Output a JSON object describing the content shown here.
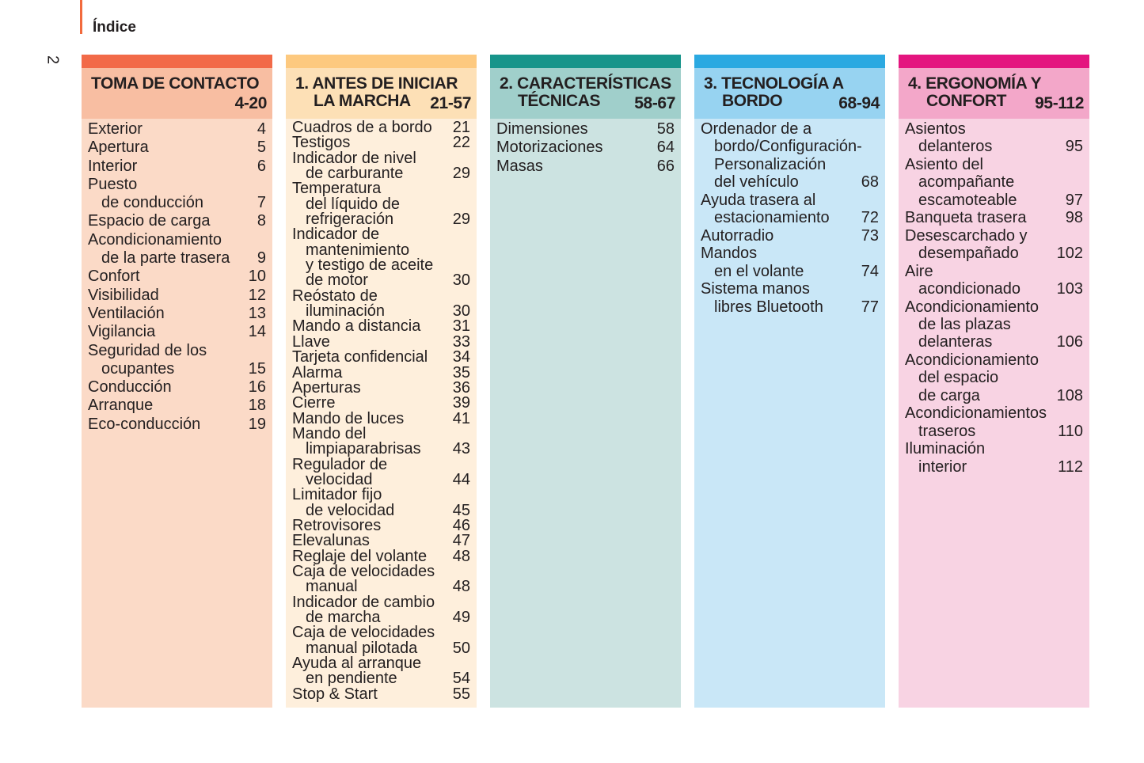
{
  "header": {
    "title": "Índice",
    "page_number": "2"
  },
  "columns": [
    {
      "header": {
        "lines": [
          "TOMA DE CONTACTO"
        ],
        "range": "4-20"
      },
      "entries": [
        {
          "lines": [
            "Exterior"
          ],
          "page": "4"
        },
        {
          "lines": [
            "Apertura"
          ],
          "page": "5"
        },
        {
          "lines": [
            "Interior"
          ],
          "page": "6"
        },
        {
          "lines": [
            "Puesto",
            "de conducción"
          ],
          "page": "7"
        },
        {
          "lines": [
            "Espacio de carga"
          ],
          "page": "8"
        },
        {
          "lines": [
            "Acondicionamiento",
            "de la parte trasera"
          ],
          "page": "9"
        },
        {
          "lines": [
            "Confort"
          ],
          "page": "10"
        },
        {
          "lines": [
            "Visibilidad"
          ],
          "page": "12"
        },
        {
          "lines": [
            "Ventilación"
          ],
          "page": "13"
        },
        {
          "lines": [
            "Vigilancia"
          ],
          "page": "14"
        },
        {
          "lines": [
            "Seguridad de los",
            "ocupantes"
          ],
          "page": "15"
        },
        {
          "lines": [
            "Conducción"
          ],
          "page": "16"
        },
        {
          "lines": [
            "Arranque"
          ],
          "page": "18"
        },
        {
          "lines": [
            "Eco-conducción"
          ],
          "page": "19"
        }
      ]
    },
    {
      "header": {
        "lines": [
          "1. ANTES DE INICIAR",
          "LA MARCHA"
        ],
        "range": "21-57"
      },
      "entries": [
        {
          "lines": [
            "Cuadros de a bordo"
          ],
          "page": "21"
        },
        {
          "lines": [
            "Testigos"
          ],
          "page": "22"
        },
        {
          "lines": [
            "Indicador de nivel",
            "de carburante"
          ],
          "page": "29"
        },
        {
          "lines": [
            "Temperatura",
            "del líquido de",
            "refrigeración"
          ],
          "page": "29"
        },
        {
          "lines": [
            "Indicador de",
            "mantenimiento",
            "y testigo de aceite",
            "de motor"
          ],
          "page": "30"
        },
        {
          "lines": [
            "Reóstato de",
            "iluminación"
          ],
          "page": "30"
        },
        {
          "lines": [
            "Mando a distancia"
          ],
          "page": "31"
        },
        {
          "lines": [
            "Llave"
          ],
          "page": "33"
        },
        {
          "lines": [
            "Tarjeta confidencial"
          ],
          "page": "34"
        },
        {
          "lines": [
            "Alarma"
          ],
          "page": "35"
        },
        {
          "lines": [
            "Aperturas"
          ],
          "page": "36"
        },
        {
          "lines": [
            "Cierre"
          ],
          "page": "39"
        },
        {
          "lines": [
            "Mando de luces"
          ],
          "page": "41"
        },
        {
          "lines": [
            "Mando del",
            "limpiaparabrisas"
          ],
          "page": "43"
        },
        {
          "lines": [
            "Regulador de",
            "velocidad"
          ],
          "page": "44"
        },
        {
          "lines": [
            "Limitador fijo",
            "de velocidad"
          ],
          "page": "45"
        },
        {
          "lines": [
            "Retrovisores"
          ],
          "page": "46"
        },
        {
          "lines": [
            "Elevalunas"
          ],
          "page": "47"
        },
        {
          "lines": [
            "Reglaje del volante"
          ],
          "page": "48"
        },
        {
          "lines": [
            "Caja de velocidades",
            "manual"
          ],
          "page": "48"
        },
        {
          "lines": [
            "Indicador de cambio",
            "de marcha"
          ],
          "page": "49"
        },
        {
          "lines": [
            "Caja de velocidades",
            "manual pilotada"
          ],
          "page": "50"
        },
        {
          "lines": [
            "Ayuda al arranque",
            "en pendiente"
          ],
          "page": "54"
        },
        {
          "lines": [
            "Stop & Start"
          ],
          "page": "55"
        }
      ]
    },
    {
      "header": {
        "lines": [
          "2. CARACTERÍSTICAS",
          "TÉCNICAS"
        ],
        "range": "58-67"
      },
      "entries": [
        {
          "lines": [
            "Dimensiones"
          ],
          "page": "58"
        },
        {
          "lines": [
            "Motorizaciones"
          ],
          "page": "64"
        },
        {
          "lines": [
            "Masas"
          ],
          "page": "66"
        }
      ]
    },
    {
      "header": {
        "lines": [
          "3. TECNOLOGÍA A",
          "BORDO"
        ],
        "range": "68-94"
      },
      "entries": [
        {
          "lines": [
            "Ordenador de a",
            "bordo/Configuración-",
            "Personalización",
            "del vehículo"
          ],
          "page": "68"
        },
        {
          "lines": [
            "Ayuda trasera al",
            "estacionamiento"
          ],
          "page": "72"
        },
        {
          "lines": [
            "Autorradio"
          ],
          "page": "73"
        },
        {
          "lines": [
            "Mandos",
            "en el volante"
          ],
          "page": "74"
        },
        {
          "lines": [
            "Sistema manos",
            "libres Bluetooth"
          ],
          "page": "77"
        }
      ]
    },
    {
      "header": {
        "lines": [
          "4. ERGONOMÍA Y",
          "CONFORT"
        ],
        "range": "95-112"
      },
      "entries": [
        {
          "lines": [
            "Asientos",
            "delanteros"
          ],
          "page": "95"
        },
        {
          "lines": [
            "Asiento del",
            "acompañante",
            "escamoteable"
          ],
          "page": "97"
        },
        {
          "lines": [
            "Banqueta trasera"
          ],
          "page": "98"
        },
        {
          "lines": [
            "Desescarchado y",
            "desempañado"
          ],
          "page": "102"
        },
        {
          "lines": [
            "Aire",
            "acondicionado"
          ],
          "page": "103"
        },
        {
          "lines": [
            "Acondicionamiento",
            "de las plazas",
            "delanteras"
          ],
          "page": "106"
        },
        {
          "lines": [
            "Acondicionamiento",
            "del espacio",
            "de carga"
          ],
          "page": "108"
        },
        {
          "lines": [
            "Acondicionamientos",
            "traseros"
          ],
          "page": "110"
        },
        {
          "lines": [
            "Iluminación",
            "interior"
          ],
          "page": "112"
        }
      ]
    }
  ]
}
